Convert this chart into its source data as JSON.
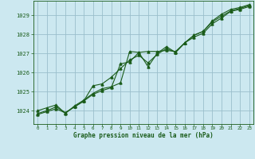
{
  "title": "Graphe pression niveau de la mer (hPa)",
  "bg_color": "#cce8f0",
  "grid_color": "#9abfcc",
  "line_color": "#1a5c1a",
  "x_ticks": [
    0,
    1,
    2,
    3,
    4,
    5,
    6,
    7,
    8,
    9,
    10,
    11,
    12,
    13,
    14,
    15,
    16,
    17,
    18,
    19,
    20,
    21,
    22,
    23
  ],
  "y_ticks": [
    1024,
    1025,
    1026,
    1027,
    1028,
    1029
  ],
  "ylim": [
    1023.3,
    1029.75
  ],
  "xlim": [
    -0.5,
    23.5
  ],
  "line1_y": [
    1024.0,
    1024.15,
    1024.3,
    1023.85,
    1024.25,
    1024.55,
    1024.9,
    1025.15,
    1025.25,
    1025.45,
    1027.1,
    1027.05,
    1027.1,
    1027.1,
    1027.15,
    1027.1,
    1027.55,
    1027.85,
    1028.05,
    1028.55,
    1028.85,
    1029.2,
    1029.3,
    1029.45
  ],
  "line2_y": [
    1023.85,
    1024.0,
    1024.2,
    1023.9,
    1024.2,
    1024.5,
    1024.85,
    1025.05,
    1025.2,
    1026.45,
    1026.55,
    1027.05,
    1026.3,
    1027.0,
    1027.35,
    1027.05,
    1027.55,
    1027.95,
    1028.15,
    1028.7,
    1029.05,
    1029.3,
    1029.4,
    1029.55
  ],
  "line3_y": [
    1023.8,
    1023.95,
    1024.1,
    1023.88,
    1024.2,
    1024.5,
    1025.3,
    1025.4,
    1025.75,
    1026.2,
    1026.65,
    1026.9,
    1026.5,
    1026.95,
    1027.25,
    1027.05,
    1027.55,
    1027.95,
    1028.15,
    1028.65,
    1028.95,
    1029.22,
    1029.35,
    1029.5
  ]
}
